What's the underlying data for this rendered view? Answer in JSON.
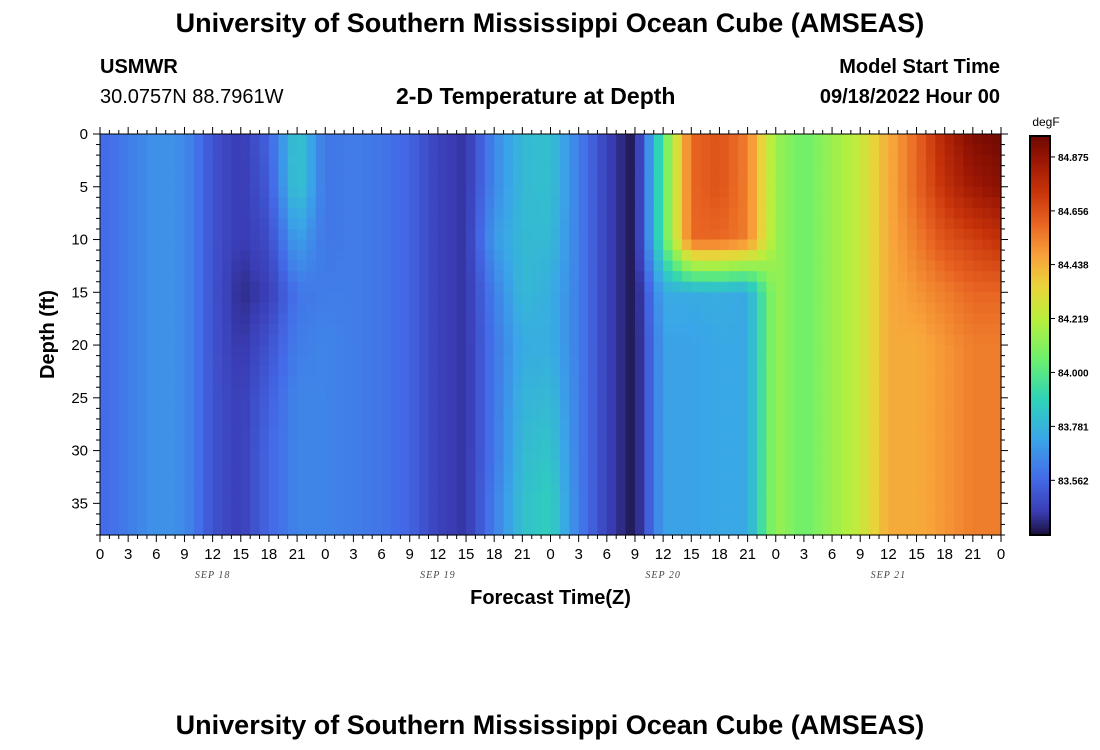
{
  "title": "University of Southern Mississippi Ocean Cube (AMSEAS)",
  "footer_title": "University of Southern Mississippi Ocean Cube (AMSEAS)",
  "station": {
    "name": "USMWR",
    "coords": "30.0757N  88.7961W"
  },
  "model_start": {
    "label": "Model Start Time",
    "value": "09/18/2022 Hour 00"
  },
  "chart_data": {
    "type": "heatmap",
    "title": "2-D Temperature at Depth",
    "xlabel": "Forecast Time(Z)",
    "ylabel": "Depth (ft)",
    "ylim": [
      0,
      38
    ],
    "xlim": [
      0,
      96
    ],
    "x_tick_values": [
      0,
      3,
      6,
      9,
      12,
      15,
      18,
      21,
      24,
      27,
      30,
      33,
      36,
      39,
      42,
      45,
      48,
      51,
      54,
      57,
      60,
      63,
      66,
      69,
      72,
      75,
      78,
      81,
      84,
      87,
      90,
      93,
      96
    ],
    "x_tick_labels": [
      "0",
      "3",
      "6",
      "9",
      "12",
      "15",
      "18",
      "21",
      "0",
      "3",
      "6",
      "9",
      "12",
      "15",
      "18",
      "21",
      "0",
      "3",
      "6",
      "9",
      "12",
      "15",
      "18",
      "21",
      "0",
      "3",
      "6",
      "9",
      "12",
      "15",
      "18",
      "21",
      "0"
    ],
    "y_tick_values": [
      0,
      5,
      10,
      15,
      20,
      25,
      30,
      35
    ],
    "y_tick_labels": [
      "0",
      "5",
      "10",
      "15",
      "20",
      "25",
      "30",
      "35"
    ],
    "date_labels": [
      {
        "x": 12,
        "label": "SEP 18"
      },
      {
        "x": 36,
        "label": "SEP 19"
      },
      {
        "x": 60,
        "label": "SEP 20"
      },
      {
        "x": 84,
        "label": "SEP 21"
      }
    ],
    "colorbar": {
      "unit": "degF",
      "min": 83.34,
      "max": 84.96,
      "tick_values": [
        84.875,
        84.656,
        84.438,
        84.219,
        84.0,
        83.781,
        83.562
      ],
      "tick_labels": [
        "84.875",
        "84.656",
        "84.438",
        "84.219",
        "84.000",
        "83.781",
        "83.562"
      ]
    },
    "value_range_degF": [
      83.34,
      84.96
    ],
    "x_hours": [
      0,
      3,
      6,
      9,
      12,
      15,
      18,
      21,
      24,
      27,
      30,
      33,
      36,
      39,
      42,
      45,
      48,
      51,
      54,
      57,
      60,
      63,
      66,
      69,
      72,
      75,
      78,
      81,
      84,
      87,
      90,
      93,
      96
    ],
    "depths_ft": [
      0,
      5,
      10,
      15,
      20,
      25,
      30,
      35,
      38
    ],
    "temperature_degF": [
      [
        83.56,
        83.56,
        83.56,
        83.56,
        83.56,
        83.56,
        83.56,
        83.56,
        83.56
      ],
      [
        83.62,
        83.62,
        83.62,
        83.62,
        83.62,
        83.62,
        83.62,
        83.62,
        83.62
      ],
      [
        83.68,
        83.68,
        83.68,
        83.68,
        83.68,
        83.68,
        83.68,
        83.68,
        83.68
      ],
      [
        83.66,
        83.66,
        83.66,
        83.66,
        83.66,
        83.66,
        83.66,
        83.66,
        83.66
      ],
      [
        83.5,
        83.5,
        83.5,
        83.5,
        83.5,
        83.5,
        83.5,
        83.5,
        83.5
      ],
      [
        83.43,
        83.43,
        83.43,
        83.4,
        83.42,
        83.44,
        83.44,
        83.44,
        83.44
      ],
      [
        83.55,
        83.52,
        83.48,
        83.44,
        83.5,
        83.54,
        83.56,
        83.56,
        83.56
      ],
      [
        83.85,
        83.85,
        83.72,
        83.6,
        83.62,
        83.64,
        83.64,
        83.64,
        83.64
      ],
      [
        83.6,
        83.6,
        83.6,
        83.62,
        83.64,
        83.64,
        83.64,
        83.64,
        83.64
      ],
      [
        83.62,
        83.62,
        83.62,
        83.62,
        83.62,
        83.62,
        83.62,
        83.62,
        83.62
      ],
      [
        83.6,
        83.6,
        83.6,
        83.6,
        83.6,
        83.6,
        83.6,
        83.6,
        83.6
      ],
      [
        83.55,
        83.55,
        83.55,
        83.55,
        83.55,
        83.55,
        83.55,
        83.55,
        83.55
      ],
      [
        83.45,
        83.45,
        83.45,
        83.45,
        83.45,
        83.45,
        83.45,
        83.45,
        83.45
      ],
      [
        83.42,
        83.42,
        83.42,
        83.42,
        83.42,
        83.42,
        83.42,
        83.42,
        83.42
      ],
      [
        83.65,
        83.65,
        83.7,
        83.62,
        83.6,
        83.6,
        83.6,
        83.62,
        83.62
      ],
      [
        83.8,
        83.8,
        83.8,
        83.8,
        83.75,
        83.78,
        83.8,
        83.82,
        83.82
      ],
      [
        83.82,
        83.82,
        83.8,
        83.76,
        83.76,
        83.8,
        83.84,
        83.88,
        83.88
      ],
      [
        83.62,
        83.62,
        83.62,
        83.62,
        83.62,
        83.62,
        83.62,
        83.62,
        83.62
      ],
      [
        83.45,
        83.45,
        83.45,
        83.45,
        83.45,
        83.45,
        83.45,
        83.45,
        83.45
      ],
      [
        83.35,
        83.35,
        83.35,
        83.35,
        83.35,
        83.35,
        83.35,
        83.35,
        83.35
      ],
      [
        84.0,
        84.0,
        84.0,
        83.75,
        83.72,
        83.72,
        83.72,
        83.72,
        83.72
      ],
      [
        84.6,
        84.6,
        84.6,
        83.75,
        83.72,
        83.72,
        83.72,
        83.72,
        83.72
      ],
      [
        84.65,
        84.65,
        84.6,
        83.76,
        83.74,
        83.74,
        83.74,
        83.74,
        83.74
      ],
      [
        84.55,
        84.55,
        84.55,
        83.74,
        83.74,
        83.74,
        83.74,
        83.74,
        83.74
      ],
      [
        84.15,
        84.15,
        84.15,
        84.15,
        84.15,
        84.15,
        84.15,
        84.15,
        84.15
      ],
      [
        84.05,
        84.05,
        84.05,
        84.05,
        84.05,
        84.05,
        84.05,
        84.05,
        84.05
      ],
      [
        84.15,
        84.15,
        84.15,
        84.15,
        84.15,
        84.15,
        84.15,
        84.15,
        84.15
      ],
      [
        84.25,
        84.25,
        84.25,
        84.25,
        84.25,
        84.25,
        84.25,
        84.25,
        84.25
      ],
      [
        84.45,
        84.45,
        84.45,
        84.45,
        84.45,
        84.45,
        84.45,
        84.45,
        84.45
      ],
      [
        84.6,
        84.6,
        84.55,
        84.5,
        84.45,
        84.45,
        84.45,
        84.45,
        84.45
      ],
      [
        84.8,
        84.75,
        84.65,
        84.55,
        84.5,
        84.5,
        84.5,
        84.5,
        84.5
      ],
      [
        84.92,
        84.85,
        84.7,
        84.6,
        84.55,
        84.55,
        84.55,
        84.55,
        84.55
      ],
      [
        84.95,
        84.9,
        84.75,
        84.6,
        84.55,
        84.55,
        84.55,
        84.55,
        84.55
      ]
    ]
  }
}
